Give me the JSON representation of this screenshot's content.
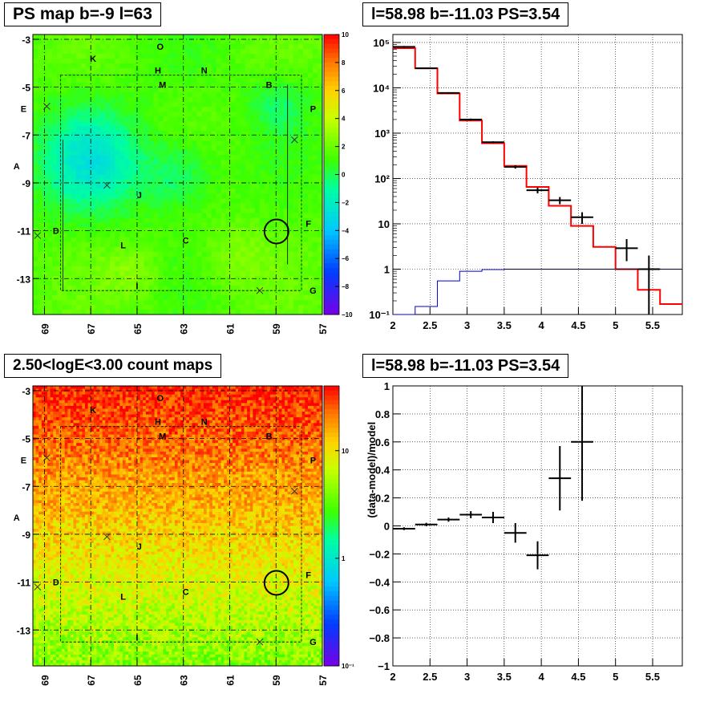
{
  "panels": {
    "tl": {
      "title": "PS map b=-9 l=63",
      "x_ticks": [
        "69",
        "67",
        "65",
        "63",
        "61",
        "59",
        "57"
      ],
      "y_ticks": [
        "-3",
        "-5",
        "-7",
        "-9",
        "-11",
        "-13"
      ],
      "colorbar_ticks": [
        "10",
        "8",
        "6",
        "4",
        "2",
        "0",
        "−2",
        "−4",
        "−6",
        "−8",
        "−10"
      ]
    },
    "bl": {
      "title": "2.50<logE<3.00 count maps",
      "x_ticks": [
        "69",
        "67",
        "65",
        "63",
        "61",
        "59",
        "57"
      ],
      "y_ticks": [
        "-3",
        "-5",
        "-7",
        "-9",
        "-11",
        "-13"
      ],
      "colorbar_ticks": [
        "10",
        "1",
        "10⁻¹"
      ]
    },
    "tr": {
      "title": "l=58.98 b=-11.03 PS=3.54"
    },
    "br": {
      "title": "l=58.98 b=-11.03 PS=3.54"
    }
  },
  "sources": [
    {
      "label": "O",
      "l": 64.0,
      "b": -3.3
    },
    {
      "label": "K",
      "l": 66.9,
      "b": -3.8
    },
    {
      "label": "H",
      "l": 64.1,
      "b": -4.3
    },
    {
      "label": "N",
      "l": 62.1,
      "b": -4.3
    },
    {
      "label": "M",
      "l": 63.9,
      "b": -4.9
    },
    {
      "label": "B",
      "l": 59.3,
      "b": -4.9
    },
    {
      "label": "E",
      "l": 69.9,
      "b": -5.9
    },
    {
      "label": "P",
      "l": 57.4,
      "b": -5.9
    },
    {
      "label": "A",
      "l": 70.2,
      "b": -8.3
    },
    {
      "label": "J",
      "l": 64.9,
      "b": -9.5
    },
    {
      "label": "F",
      "l": 57.6,
      "b": -10.7
    },
    {
      "label": "D",
      "l": 68.5,
      "b": -11.0
    },
    {
      "label": "L",
      "l": 65.6,
      "b": -11.6
    },
    {
      "label": "C",
      "l": 62.9,
      "b": -11.4
    },
    {
      "label": "I",
      "l": 65.0,
      "b": -13.3
    },
    {
      "label": "G",
      "l": 57.4,
      "b": -13.5
    }
  ],
  "crosses": [
    {
      "l": 68.9,
      "b": -5.8
    },
    {
      "l": 58.2,
      "b": -7.2
    },
    {
      "l": 66.3,
      "b": -9.1
    },
    {
      "l": 69.3,
      "b": -11.2
    },
    {
      "l": 59.7,
      "b": -13.5
    }
  ],
  "target": {
    "l": 58.98,
    "b": -11.03
  },
  "chart_data": [
    {
      "type": "heatmap",
      "title": "PS map b=-9 l=63",
      "x_range": [
        69.5,
        57
      ],
      "y_range": [
        -14.5,
        -2.8
      ],
      "x_ticks": [
        69,
        67,
        65,
        63,
        61,
        59,
        57
      ],
      "y_ticks": [
        -3,
        -5,
        -7,
        -9,
        -11,
        -13
      ],
      "z_range": [
        -10,
        10
      ],
      "colorbar_ticks": [
        10,
        8,
        6,
        4,
        2,
        0,
        -2,
        -4,
        -6,
        -8,
        -10
      ],
      "grid": true
    },
    {
      "type": "line",
      "title": "l=58.98 b=-11.03 PS=3.54",
      "x_range": [
        2,
        5.9
      ],
      "y_range": [
        0.1,
        150000
      ],
      "y_scale": "log",
      "x_ticks": [
        2,
        2.5,
        3,
        3.5,
        4,
        4.5,
        5,
        5.5
      ],
      "y_ticks_labels": [
        "10⁻¹",
        "1",
        "10",
        "10²",
        "10³",
        "10⁴",
        "10⁵"
      ],
      "y_ticks": [
        0.1,
        1,
        10,
        100,
        1000,
        10000,
        100000
      ],
      "series": [
        {
          "color": "#ff0000",
          "edges": [
            2.0,
            2.3,
            2.6,
            2.9,
            3.2,
            3.5,
            3.8,
            4.1,
            4.4,
            4.7,
            5.0,
            5.3,
            5.6,
            5.9
          ],
          "values": [
            75000,
            27000,
            7500,
            1900,
            600,
            190,
            65,
            25,
            9,
            3.1,
            1.0,
            0.35,
            0.17
          ]
        },
        {
          "color": "#0000cc",
          "edges": [
            2.0,
            2.3,
            2.6,
            2.9,
            3.2,
            3.5,
            3.8,
            4.1,
            4.4,
            4.7,
            5.0,
            5.3,
            5.6,
            5.9
          ],
          "values": [
            0.1,
            0.15,
            0.55,
            0.9,
            0.98,
            1.0,
            1.0,
            1.0,
            1.0,
            1.0,
            1.0,
            1.0,
            1.0
          ]
        },
        {
          "color": "#000000",
          "style": "errorbar",
          "points": [
            {
              "x": 2.15,
              "y": 80000,
              "xerr": 0.15,
              "ylo": 76000,
              "yhi": 84000
            },
            {
              "x": 2.45,
              "y": 27000,
              "xerr": 0.15,
              "ylo": 26000,
              "yhi": 28000
            },
            {
              "x": 2.75,
              "y": 7700,
              "xerr": 0.15,
              "ylo": 7400,
              "yhi": 8000
            },
            {
              "x": 3.05,
              "y": 2000,
              "xerr": 0.15,
              "ylo": 1900,
              "yhi": 2100
            },
            {
              "x": 3.35,
              "y": 630,
              "xerr": 0.15,
              "ylo": 600,
              "yhi": 660
            },
            {
              "x": 3.65,
              "y": 180,
              "xerr": 0.15,
              "ylo": 165,
              "yhi": 196
            },
            {
              "x": 3.95,
              "y": 55,
              "xerr": 0.15,
              "ylo": 47,
              "yhi": 63
            },
            {
              "x": 4.25,
              "y": 33,
              "xerr": 0.15,
              "ylo": 27,
              "yhi": 39
            },
            {
              "x": 4.55,
              "y": 14,
              "xerr": 0.15,
              "ylo": 10,
              "yhi": 18
            },
            {
              "x": 5.15,
              "y": 2.9,
              "xerr": 0.15,
              "ylo": 1.5,
              "yhi": 4.6
            },
            {
              "x": 5.45,
              "y": 1.0,
              "xerr": 0.15,
              "ylo": 0.1,
              "yhi": 2.0
            }
          ]
        }
      ],
      "grid": true
    },
    {
      "type": "heatmap",
      "title": "2.50<logE<3.00 count maps",
      "x_range": [
        69.5,
        57
      ],
      "y_range": [
        -14.5,
        -2.8
      ],
      "x_ticks": [
        69,
        67,
        65,
        63,
        61,
        59,
        57
      ],
      "y_ticks": [
        -3,
        -5,
        -7,
        -9,
        -11,
        -13
      ],
      "z_scale": "log",
      "z_range": [
        0.1,
        40
      ],
      "colorbar_ticks": [
        10,
        1,
        0.1
      ],
      "grid": true
    },
    {
      "type": "scatter",
      "title": "l=58.98 b=-11.03 PS=3.54",
      "ylabel": "(data-model)/model",
      "x_range": [
        2,
        5.9
      ],
      "y_range": [
        -1,
        1
      ],
      "x_ticks": [
        2,
        2.5,
        3,
        3.5,
        4,
        4.5,
        5,
        5.5
      ],
      "y_ticks": [
        -1,
        -0.8,
        -0.6,
        -0.4,
        -0.2,
        0,
        0.2,
        0.4,
        0.6,
        0.8,
        1
      ],
      "points": [
        {
          "x": 2.15,
          "y": -0.02,
          "xerr": 0.15,
          "yerr": 0.01
        },
        {
          "x": 2.45,
          "y": 0.01,
          "xerr": 0.15,
          "yerr": 0.012
        },
        {
          "x": 2.75,
          "y": 0.045,
          "xerr": 0.15,
          "yerr": 0.015
        },
        {
          "x": 3.05,
          "y": 0.08,
          "xerr": 0.15,
          "yerr": 0.025
        },
        {
          "x": 3.35,
          "y": 0.06,
          "xerr": 0.15,
          "yerr": 0.04
        },
        {
          "x": 3.65,
          "y": -0.05,
          "xerr": 0.15,
          "yerr": 0.07
        },
        {
          "x": 3.95,
          "y": -0.21,
          "xerr": 0.15,
          "yerr": 0.1
        },
        {
          "x": 4.25,
          "y": 0.34,
          "xerr": 0.15,
          "yerr": 0.23
        },
        {
          "x": 4.55,
          "y": 0.6,
          "xerr": 0.15,
          "yerr": 0.42
        }
      ],
      "grid": true
    }
  ]
}
